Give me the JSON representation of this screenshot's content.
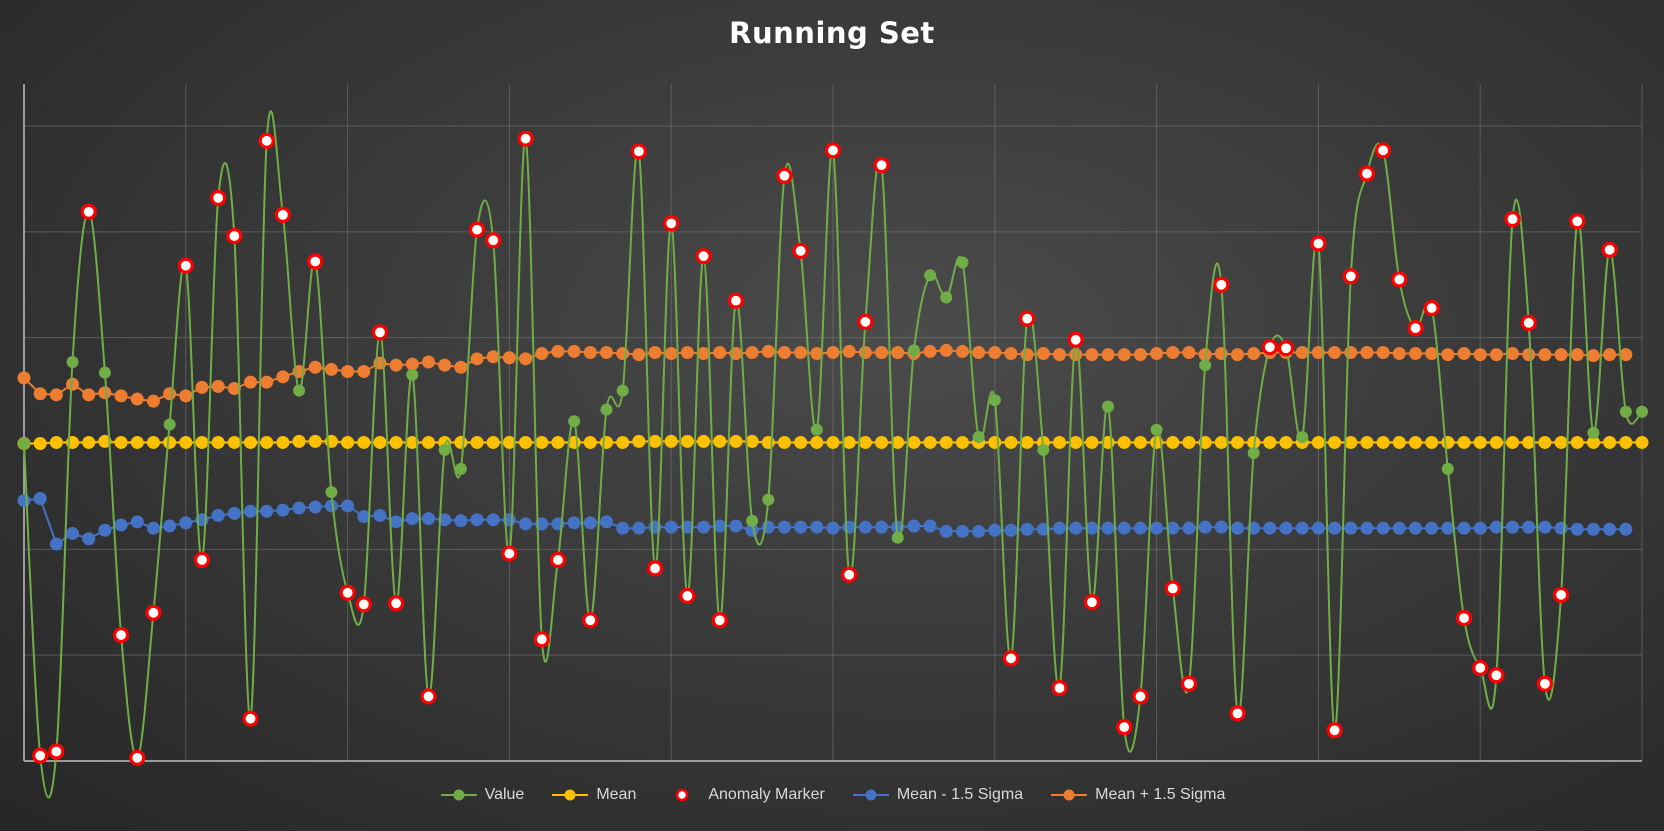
{
  "chart_data": {
    "type": "line",
    "title": "Running Set",
    "xlabel": "",
    "ylabel": "",
    "x_count": 101,
    "ylim": [
      0,
      6
    ],
    "xlim": [
      0,
      100
    ],
    "grid": true,
    "legend_position": "bottom",
    "series": [
      {
        "name": "Value",
        "color": "#70ad47",
        "values": [
          3.0,
          0.05,
          0.09,
          3.77,
          5.19,
          3.67,
          1.19,
          0.03,
          1.4,
          3.18,
          4.68,
          1.9,
          5.32,
          4.96,
          0.4,
          5.86,
          5.16,
          3.5,
          4.72,
          2.54,
          1.59,
          1.48,
          4.05,
          1.49,
          3.65,
          0.61,
          2.94,
          2.76,
          5.02,
          4.92,
          1.96,
          5.88,
          1.15,
          1.9,
          3.21,
          1.33,
          3.32,
          3.5,
          5.76,
          1.82,
          5.08,
          1.56,
          4.77,
          1.33,
          4.35,
          2.27,
          2.47,
          5.53,
          4.82,
          3.13,
          5.77,
          1.76,
          4.15,
          5.63,
          2.11,
          3.88,
          4.59,
          4.38,
          4.71,
          3.06,
          3.41,
          0.97,
          4.18,
          2.94,
          0.69,
          3.98,
          1.5,
          3.35,
          0.32,
          0.61,
          3.13,
          1.63,
          0.73,
          3.74,
          4.5,
          0.45,
          2.91,
          3.91,
          3.9,
          3.06,
          4.89,
          0.29,
          4.58,
          5.55,
          5.77,
          4.55,
          4.09,
          4.28,
          2.76,
          1.35,
          0.88,
          0.81,
          5.12,
          4.14,
          0.73,
          1.57,
          5.1,
          3.1,
          4.83,
          3.3,
          3.3
        ]
      },
      {
        "name": "Mean",
        "color": "#ffc000",
        "values": [
          3.0,
          3.0,
          3.01,
          3.01,
          3.01,
          3.02,
          3.01,
          3.01,
          3.01,
          3.01,
          3.01,
          3.01,
          3.01,
          3.01,
          3.01,
          3.01,
          3.01,
          3.02,
          3.02,
          3.02,
          3.01,
          3.01,
          3.01,
          3.01,
          3.01,
          3.01,
          3.01,
          3.01,
          3.01,
          3.01,
          3.01,
          3.01,
          3.01,
          3.01,
          3.01,
          3.01,
          3.01,
          3.01,
          3.02,
          3.02,
          3.02,
          3.02,
          3.02,
          3.02,
          3.02,
          3.02,
          3.01,
          3.01,
          3.01,
          3.01,
          3.01,
          3.01,
          3.01,
          3.01,
          3.01,
          3.01,
          3.01,
          3.01,
          3.01,
          3.01,
          3.01,
          3.01,
          3.01,
          3.01,
          3.01,
          3.01,
          3.01,
          3.01,
          3.01,
          3.01,
          3.01,
          3.01,
          3.01,
          3.01,
          3.01,
          3.01,
          3.01,
          3.01,
          3.01,
          3.01,
          3.01,
          3.01,
          3.01,
          3.01,
          3.01,
          3.01,
          3.01,
          3.01,
          3.01,
          3.01,
          3.01,
          3.01,
          3.01,
          3.01,
          3.01,
          3.01,
          3.01,
          3.01,
          3.01,
          3.01,
          3.01
        ]
      },
      {
        "name": "Anomaly Marker",
        "color": "#ff0000",
        "values": [
          null,
          0.05,
          0.09,
          null,
          5.19,
          null,
          1.19,
          0.03,
          1.4,
          null,
          4.68,
          1.9,
          5.32,
          4.96,
          0.4,
          5.86,
          5.16,
          null,
          4.72,
          null,
          1.59,
          1.48,
          4.05,
          1.49,
          null,
          0.61,
          null,
          null,
          5.02,
          4.92,
          1.96,
          5.88,
          1.15,
          1.9,
          null,
          1.33,
          null,
          null,
          5.76,
          1.82,
          5.08,
          1.56,
          4.77,
          1.33,
          4.35,
          null,
          null,
          5.53,
          4.82,
          null,
          5.77,
          1.76,
          4.15,
          5.63,
          null,
          null,
          null,
          null,
          null,
          null,
          null,
          0.97,
          4.18,
          null,
          0.69,
          3.98,
          1.5,
          null,
          0.32,
          0.61,
          null,
          1.63,
          0.73,
          null,
          4.5,
          0.45,
          null,
          3.91,
          3.9,
          null,
          4.89,
          0.29,
          4.58,
          5.55,
          5.77,
          4.55,
          4.09,
          4.28,
          null,
          1.35,
          0.88,
          0.81,
          5.12,
          4.14,
          0.73,
          1.57,
          5.1,
          null,
          4.83,
          null,
          null
        ]
      },
      {
        "name": "Mean - 1.5 Sigma",
        "color": "#4472c4",
        "values": [
          2.46,
          2.48,
          2.05,
          2.15,
          2.1,
          2.18,
          2.23,
          2.26,
          2.2,
          2.22,
          2.25,
          2.28,
          2.32,
          2.34,
          2.36,
          2.36,
          2.37,
          2.39,
          2.4,
          2.41,
          2.41,
          2.31,
          2.32,
          2.26,
          2.29,
          2.29,
          2.28,
          2.27,
          2.28,
          2.28,
          2.28,
          2.24,
          2.24,
          2.24,
          2.25,
          2.25,
          2.26,
          2.2,
          2.2,
          2.21,
          2.21,
          2.21,
          2.21,
          2.22,
          2.22,
          2.18,
          2.21,
          2.21,
          2.21,
          2.21,
          2.2,
          2.21,
          2.21,
          2.21,
          2.21,
          2.22,
          2.22,
          2.17,
          2.17,
          2.17,
          2.18,
          2.18,
          2.19,
          2.19,
          2.2,
          2.2,
          2.2,
          2.2,
          2.2,
          2.2,
          2.2,
          2.2,
          2.2,
          2.21,
          2.21,
          2.2,
          2.2,
          2.2,
          2.2,
          2.2,
          2.2,
          2.2,
          2.2,
          2.2,
          2.2,
          2.2,
          2.2,
          2.2,
          2.2,
          2.2,
          2.2,
          2.21,
          2.21,
          2.21,
          2.21,
          2.2,
          2.19,
          2.19,
          2.19,
          2.19,
          null
        ]
      },
      {
        "name": "Mean + 1.5 Sigma",
        "color": "#ed7d31",
        "values": [
          3.62,
          3.47,
          3.46,
          3.56,
          3.46,
          3.48,
          3.45,
          3.42,
          3.4,
          3.47,
          3.45,
          3.53,
          3.54,
          3.52,
          3.58,
          3.58,
          3.63,
          3.68,
          3.72,
          3.7,
          3.68,
          3.68,
          3.76,
          3.74,
          3.75,
          3.77,
          3.74,
          3.72,
          3.8,
          3.82,
          3.81,
          3.8,
          3.85,
          3.87,
          3.87,
          3.86,
          3.86,
          3.85,
          3.84,
          3.86,
          3.85,
          3.86,
          3.85,
          3.86,
          3.85,
          3.86,
          3.87,
          3.86,
          3.86,
          3.85,
          3.86,
          3.87,
          3.86,
          3.86,
          3.86,
          3.85,
          3.87,
          3.88,
          3.87,
          3.86,
          3.86,
          3.85,
          3.84,
          3.85,
          3.84,
          3.84,
          3.84,
          3.84,
          3.84,
          3.84,
          3.85,
          3.86,
          3.86,
          3.84,
          3.85,
          3.84,
          3.85,
          3.86,
          3.86,
          3.86,
          3.86,
          3.86,
          3.86,
          3.86,
          3.86,
          3.85,
          3.85,
          3.85,
          3.84,
          3.85,
          3.84,
          3.84,
          3.85,
          3.84,
          3.84,
          3.84,
          3.84,
          3.83,
          3.84,
          3.84,
          null
        ]
      }
    ]
  }
}
